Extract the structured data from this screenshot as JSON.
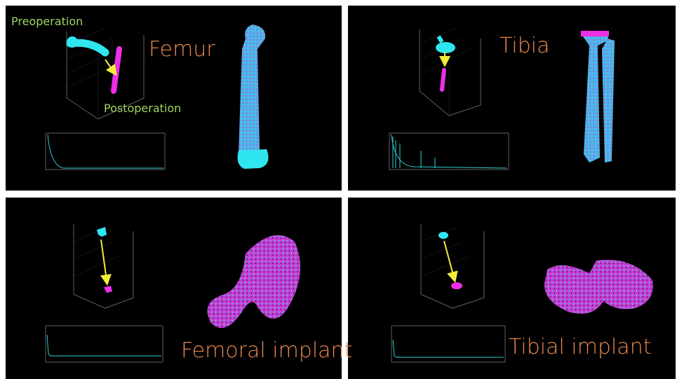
{
  "panels": [
    {
      "title": "Femur",
      "annotations": [
        "Preoperation",
        "Postoperation"
      ]
    },
    {
      "title": "Tibia"
    },
    {
      "title": "Femoral implant"
    },
    {
      "title": "Tibial implant"
    }
  ]
}
